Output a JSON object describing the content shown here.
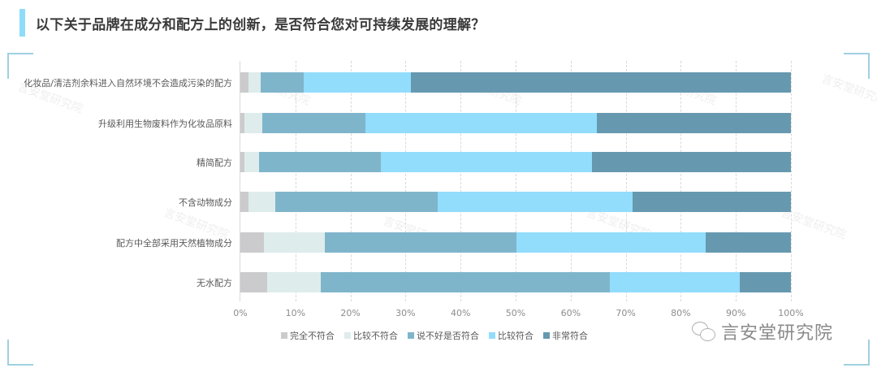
{
  "header": {
    "title": "以下关于品牌在成分和配方上的创新，是否符合您对可持续发展的理解？",
    "accent_color": "#8fdcf8"
  },
  "watermark": {
    "brand": "言安堂研究院",
    "icon": "wechat-icon",
    "faint_text": "言安堂研究院"
  },
  "chart_data": {
    "type": "bar",
    "orientation": "horizontal",
    "stacked": "percent",
    "title": "以下关于品牌在成分和配方上的创新，是否符合您对可持续发展的理解？",
    "xlabel": "",
    "ylabel": "",
    "xlim": [
      0,
      100
    ],
    "x_ticks": [
      "0%",
      "10%",
      "20%",
      "30%",
      "40%",
      "50%",
      "60%",
      "70%",
      "80%",
      "90%",
      "100%"
    ],
    "grid": "vertical dashed",
    "legend_position": "bottom",
    "categories": [
      "化妆品/清洁剂余料进入自然环境不会造成污染的配方",
      "升级利用生物废料作为化妆品原料",
      "精简配方",
      "不含动物成分",
      "配方中全部采用天然植物成分",
      "无水配方"
    ],
    "series": [
      {
        "name": "完全不符合",
        "color": "#cbcbcd",
        "values": [
          1.5,
          0.8,
          0.8,
          1.5,
          4.3,
          4.9
        ]
      },
      {
        "name": "比较不符合",
        "color": "#deecec",
        "values": [
          2.2,
          3.2,
          2.6,
          4.8,
          11.0,
          9.7
        ]
      },
      {
        "name": "说不好是否符合",
        "color": "#7fb5cb",
        "values": [
          7.8,
          18.7,
          22.1,
          29.5,
          34.8,
          52.5
        ]
      },
      {
        "name": "比较符合",
        "color": "#92dcfc",
        "values": [
          19.5,
          42.0,
          38.4,
          35.4,
          34.4,
          23.6
        ]
      },
      {
        "name": "非常符合",
        "color": "#6699b0",
        "values": [
          69.0,
          35.3,
          36.1,
          28.8,
          15.5,
          9.3
        ]
      }
    ]
  }
}
